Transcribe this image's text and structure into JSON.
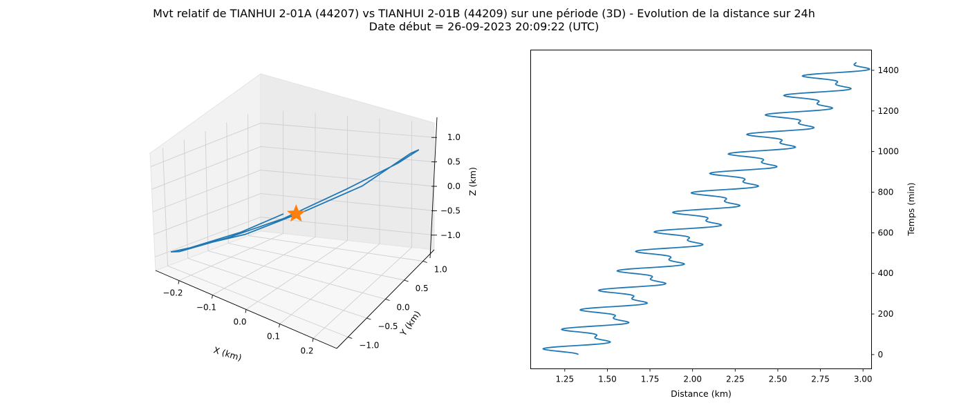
{
  "figure": {
    "title_line1": "Mvt relatif de TIANHUI 2-01A (44207) vs TIANHUI 2-01B (44209) sur une période (3D) - Evolution de la distance sur 24h",
    "title_line2": "Date début = 26-09-2023 20:09:22 (UTC)"
  },
  "chart_data": [
    {
      "type": "line3d",
      "xlabel": "X (km)",
      "ylabel": "Y (km)",
      "zlabel": "Z (km)",
      "xlim": [
        -0.27,
        0.27
      ],
      "ylim": [
        -1.3,
        1.3
      ],
      "zlim": [
        -1.3,
        1.3
      ],
      "x_ticks": [
        "−0.2",
        "−0.1",
        "0.0",
        "0.1",
        "0.2"
      ],
      "x_tick_values": [
        -0.2,
        -0.1,
        0.0,
        0.1,
        0.2
      ],
      "y_ticks": [
        "−1.0",
        "−0.5",
        "0.0",
        "0.5",
        "1.0"
      ],
      "y_tick_values": [
        -1.0,
        -0.5,
        0.0,
        0.5,
        1.0
      ],
      "z_ticks": [
        "−1.0",
        "−0.5",
        "0.0",
        "0.5",
        "1.0"
      ],
      "z_tick_values": [
        -1.0,
        -0.5,
        0.0,
        0.5,
        1.0
      ],
      "grid": true,
      "series": [
        {
          "x": [
            -0.02,
            -0.1,
            -0.2,
            -0.24,
            -0.22,
            -0.13,
            -0.02,
            0.1,
            0.2,
            0.24,
            0.22,
            0.13,
            0.02,
            -0.1,
            -0.17
          ],
          "y": [
            -0.15,
            -0.55,
            -1.0,
            -1.15,
            -1.1,
            -0.65,
            -0.15,
            0.45,
            0.95,
            1.15,
            1.1,
            0.6,
            0.1,
            -0.45,
            -0.8
          ],
          "z": [
            0.05,
            -0.3,
            -0.7,
            -0.85,
            -0.8,
            -0.45,
            -0.05,
            0.4,
            0.7,
            0.85,
            0.8,
            0.4,
            0.05,
            -0.4,
            -0.6
          ],
          "color": "#1f77b4"
        }
      ],
      "marker": {
        "x": 0.0,
        "y": 0.0,
        "z": 0.0,
        "shape": "star",
        "color": "#ff7f0e"
      }
    },
    {
      "type": "line",
      "xlabel": "Distance (km)",
      "ylabel": "Temps (min)",
      "xlim": [
        1.05,
        3.05
      ],
      "ylim": [
        -70,
        1500
      ],
      "x_ticks": [
        1.25,
        1.5,
        1.75,
        2.0,
        2.25,
        2.5,
        2.75,
        3.0
      ],
      "x_tick_labels": [
        "1.25",
        "1.50",
        "1.75",
        "2.00",
        "2.25",
        "2.50",
        "2.75",
        "3.00"
      ],
      "y_ticks": [
        0,
        200,
        400,
        600,
        800,
        1000,
        1200,
        1400
      ],
      "y_tick_labels": [
        "0",
        "200",
        "400",
        "600",
        "800",
        "1000",
        "1200",
        "1400"
      ],
      "grid": false,
      "yaxis_position": "right",
      "series": [
        {
          "color": "#1f77b4",
          "x_start": 1.29,
          "x_end": 2.92,
          "period_min": 96,
          "inner_amplitude": 0.14,
          "outer_amplitude": 0.07,
          "duration_min": 1440
        }
      ]
    }
  ]
}
